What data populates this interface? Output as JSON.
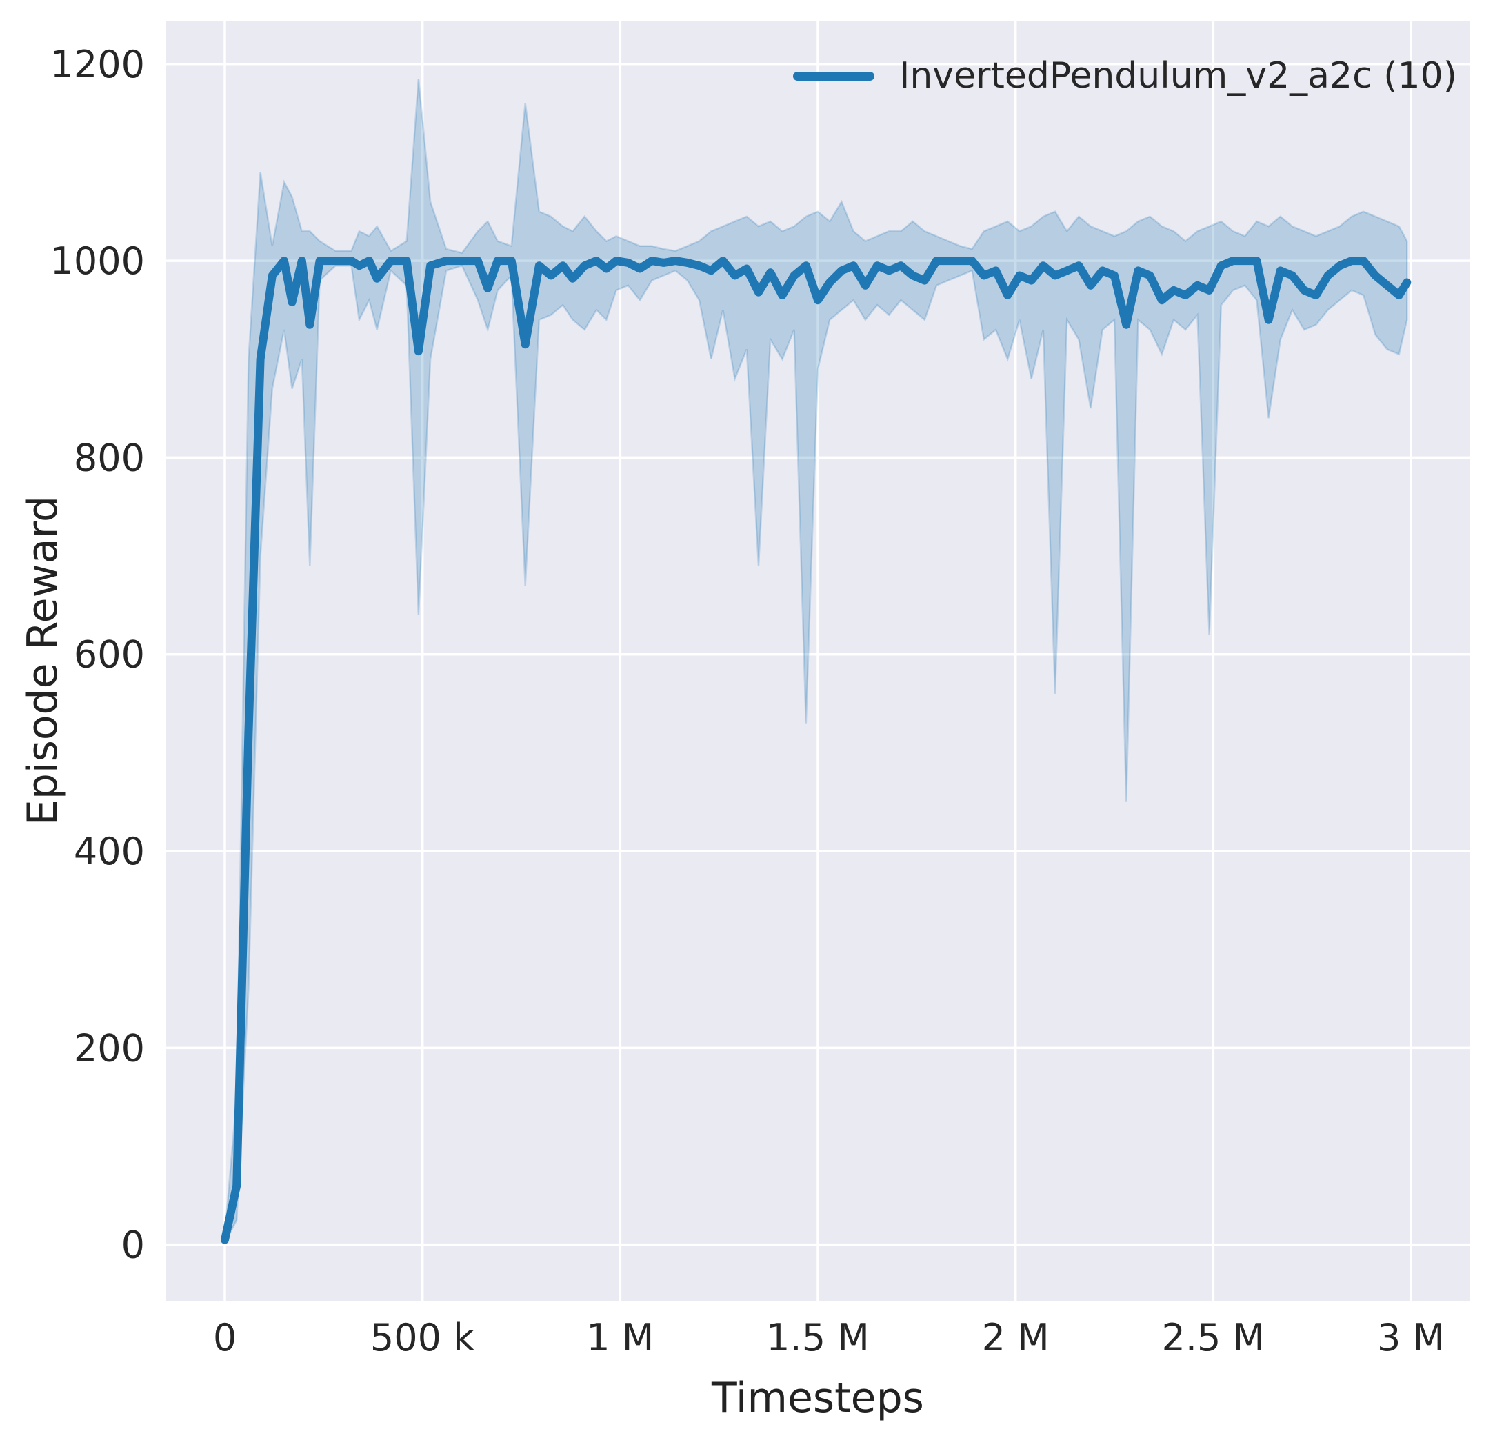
{
  "figure": {
    "xlabel": "Timesteps",
    "ylabel": "Episode Reward",
    "legend_label": "InvertedPendulum_v2_a2c (10)"
  },
  "chart_data": {
    "type": "line",
    "title": "",
    "xlabel": "Timesteps",
    "ylabel": "Episode Reward",
    "legend": [
      "InvertedPendulum_v2_a2c (10)"
    ],
    "legend_position": "upper right",
    "grid": true,
    "background": "#eaeaf2",
    "grid_color": "#ffffff",
    "line_color": "#1f77b4",
    "band_alpha": 0.25,
    "text_color": "#262626",
    "xlim": [
      -150000,
      3150000
    ],
    "ylim": [
      -57,
      1244
    ],
    "xticks": [
      {
        "value": 0,
        "label": "0"
      },
      {
        "value": 500000,
        "label": "500 k"
      },
      {
        "value": 1000000,
        "label": "1 M"
      },
      {
        "value": 1500000,
        "label": "1.5 M"
      },
      {
        "value": 2000000,
        "label": "2 M"
      },
      {
        "value": 2500000,
        "label": "2.5 M"
      },
      {
        "value": 3000000,
        "label": "3 M"
      }
    ],
    "yticks": [
      {
        "value": 0,
        "label": "0"
      },
      {
        "value": 200,
        "label": "200"
      },
      {
        "value": 400,
        "label": "400"
      },
      {
        "value": 600,
        "label": "600"
      },
      {
        "value": 800,
        "label": "800"
      },
      {
        "value": 1000,
        "label": "1000"
      },
      {
        "value": 1200,
        "label": "1200"
      }
    ],
    "series": [
      {
        "name": "InvertedPendulum_v2_a2c (10)",
        "point_format": [
          "timesteps",
          "mean_reward",
          "band_low",
          "band_high"
        ],
        "points": [
          [
            0,
            5,
            2,
            10
          ],
          [
            30000,
            60,
            25,
            150
          ],
          [
            60000,
            520,
            260,
            900
          ],
          [
            90000,
            900,
            700,
            1090
          ],
          [
            120000,
            985,
            870,
            1015
          ],
          [
            150000,
            1000,
            930,
            1080
          ],
          [
            170000,
            958,
            870,
            1065
          ],
          [
            195000,
            1000,
            900,
            1030
          ],
          [
            215000,
            935,
            690,
            1030
          ],
          [
            240000,
            1000,
            980,
            1020
          ],
          [
            280000,
            1000,
            995,
            1010
          ],
          [
            320000,
            1000,
            995,
            1010
          ],
          [
            340000,
            995,
            940,
            1030
          ],
          [
            365000,
            1000,
            960,
            1025
          ],
          [
            385000,
            982,
            930,
            1035
          ],
          [
            420000,
            1000,
            990,
            1010
          ],
          [
            460000,
            1000,
            975,
            1020
          ],
          [
            490000,
            908,
            640,
            1185
          ],
          [
            520000,
            995,
            900,
            1060
          ],
          [
            560000,
            1000,
            990,
            1012
          ],
          [
            600000,
            1000,
            995,
            1008
          ],
          [
            640000,
            1000,
            960,
            1030
          ],
          [
            665000,
            972,
            930,
            1040
          ],
          [
            690000,
            1000,
            970,
            1020
          ],
          [
            725000,
            1000,
            985,
            1015
          ],
          [
            760000,
            915,
            670,
            1160
          ],
          [
            795000,
            995,
            940,
            1050
          ],
          [
            825000,
            985,
            945,
            1045
          ],
          [
            855000,
            995,
            955,
            1035
          ],
          [
            880000,
            982,
            940,
            1030
          ],
          [
            910000,
            995,
            930,
            1045
          ],
          [
            940000,
            1000,
            950,
            1030
          ],
          [
            965000,
            992,
            940,
            1020
          ],
          [
            990000,
            1000,
            970,
            1025
          ],
          [
            1020000,
            998,
            975,
            1020
          ],
          [
            1050000,
            992,
            960,
            1015
          ],
          [
            1080000,
            1000,
            980,
            1015
          ],
          [
            1110000,
            998,
            985,
            1012
          ],
          [
            1140000,
            1000,
            990,
            1010
          ],
          [
            1170000,
            998,
            980,
            1015
          ],
          [
            1200000,
            995,
            960,
            1020
          ],
          [
            1230000,
            990,
            900,
            1030
          ],
          [
            1260000,
            1000,
            950,
            1035
          ],
          [
            1290000,
            985,
            880,
            1040
          ],
          [
            1320000,
            992,
            910,
            1045
          ],
          [
            1350000,
            968,
            690,
            1035
          ],
          [
            1380000,
            988,
            920,
            1040
          ],
          [
            1410000,
            965,
            900,
            1030
          ],
          [
            1440000,
            985,
            930,
            1035
          ],
          [
            1470000,
            995,
            530,
            1045
          ],
          [
            1500000,
            960,
            890,
            1050
          ],
          [
            1530000,
            978,
            940,
            1040
          ],
          [
            1560000,
            990,
            950,
            1060
          ],
          [
            1590000,
            995,
            960,
            1030
          ],
          [
            1620000,
            975,
            940,
            1020
          ],
          [
            1650000,
            995,
            955,
            1025
          ],
          [
            1680000,
            990,
            945,
            1030
          ],
          [
            1710000,
            995,
            960,
            1030
          ],
          [
            1740000,
            985,
            950,
            1040
          ],
          [
            1770000,
            980,
            940,
            1030
          ],
          [
            1800000,
            1000,
            975,
            1025
          ],
          [
            1830000,
            1000,
            980,
            1020
          ],
          [
            1860000,
            1000,
            985,
            1015
          ],
          [
            1890000,
            1000,
            990,
            1012
          ],
          [
            1920000,
            985,
            920,
            1030
          ],
          [
            1950000,
            990,
            930,
            1035
          ],
          [
            1980000,
            965,
            900,
            1040
          ],
          [
            2010000,
            985,
            940,
            1030
          ],
          [
            2040000,
            980,
            880,
            1035
          ],
          [
            2070000,
            995,
            930,
            1045
          ],
          [
            2100000,
            985,
            560,
            1050
          ],
          [
            2130000,
            990,
            940,
            1030
          ],
          [
            2160000,
            995,
            920,
            1045
          ],
          [
            2190000,
            975,
            850,
            1035
          ],
          [
            2220000,
            990,
            930,
            1030
          ],
          [
            2250000,
            985,
            940,
            1025
          ],
          [
            2280000,
            935,
            450,
            1030
          ],
          [
            2310000,
            990,
            940,
            1040
          ],
          [
            2340000,
            985,
            930,
            1045
          ],
          [
            2370000,
            960,
            905,
            1035
          ],
          [
            2400000,
            970,
            940,
            1030
          ],
          [
            2430000,
            965,
            930,
            1020
          ],
          [
            2460000,
            975,
            945,
            1030
          ],
          [
            2490000,
            970,
            620,
            1035
          ],
          [
            2520000,
            995,
            955,
            1040
          ],
          [
            2550000,
            1000,
            970,
            1030
          ],
          [
            2580000,
            1000,
            975,
            1025
          ],
          [
            2610000,
            1000,
            960,
            1040
          ],
          [
            2640000,
            940,
            840,
            1035
          ],
          [
            2670000,
            990,
            920,
            1045
          ],
          [
            2700000,
            985,
            950,
            1035
          ],
          [
            2730000,
            970,
            930,
            1030
          ],
          [
            2760000,
            965,
            935,
            1025
          ],
          [
            2790000,
            985,
            950,
            1030
          ],
          [
            2820000,
            995,
            960,
            1035
          ],
          [
            2850000,
            1000,
            970,
            1045
          ],
          [
            2880000,
            1000,
            965,
            1050
          ],
          [
            2910000,
            985,
            925,
            1045
          ],
          [
            2940000,
            975,
            910,
            1040
          ],
          [
            2970000,
            965,
            905,
            1035
          ],
          [
            2990000,
            978,
            940,
            1020
          ]
        ]
      }
    ]
  }
}
